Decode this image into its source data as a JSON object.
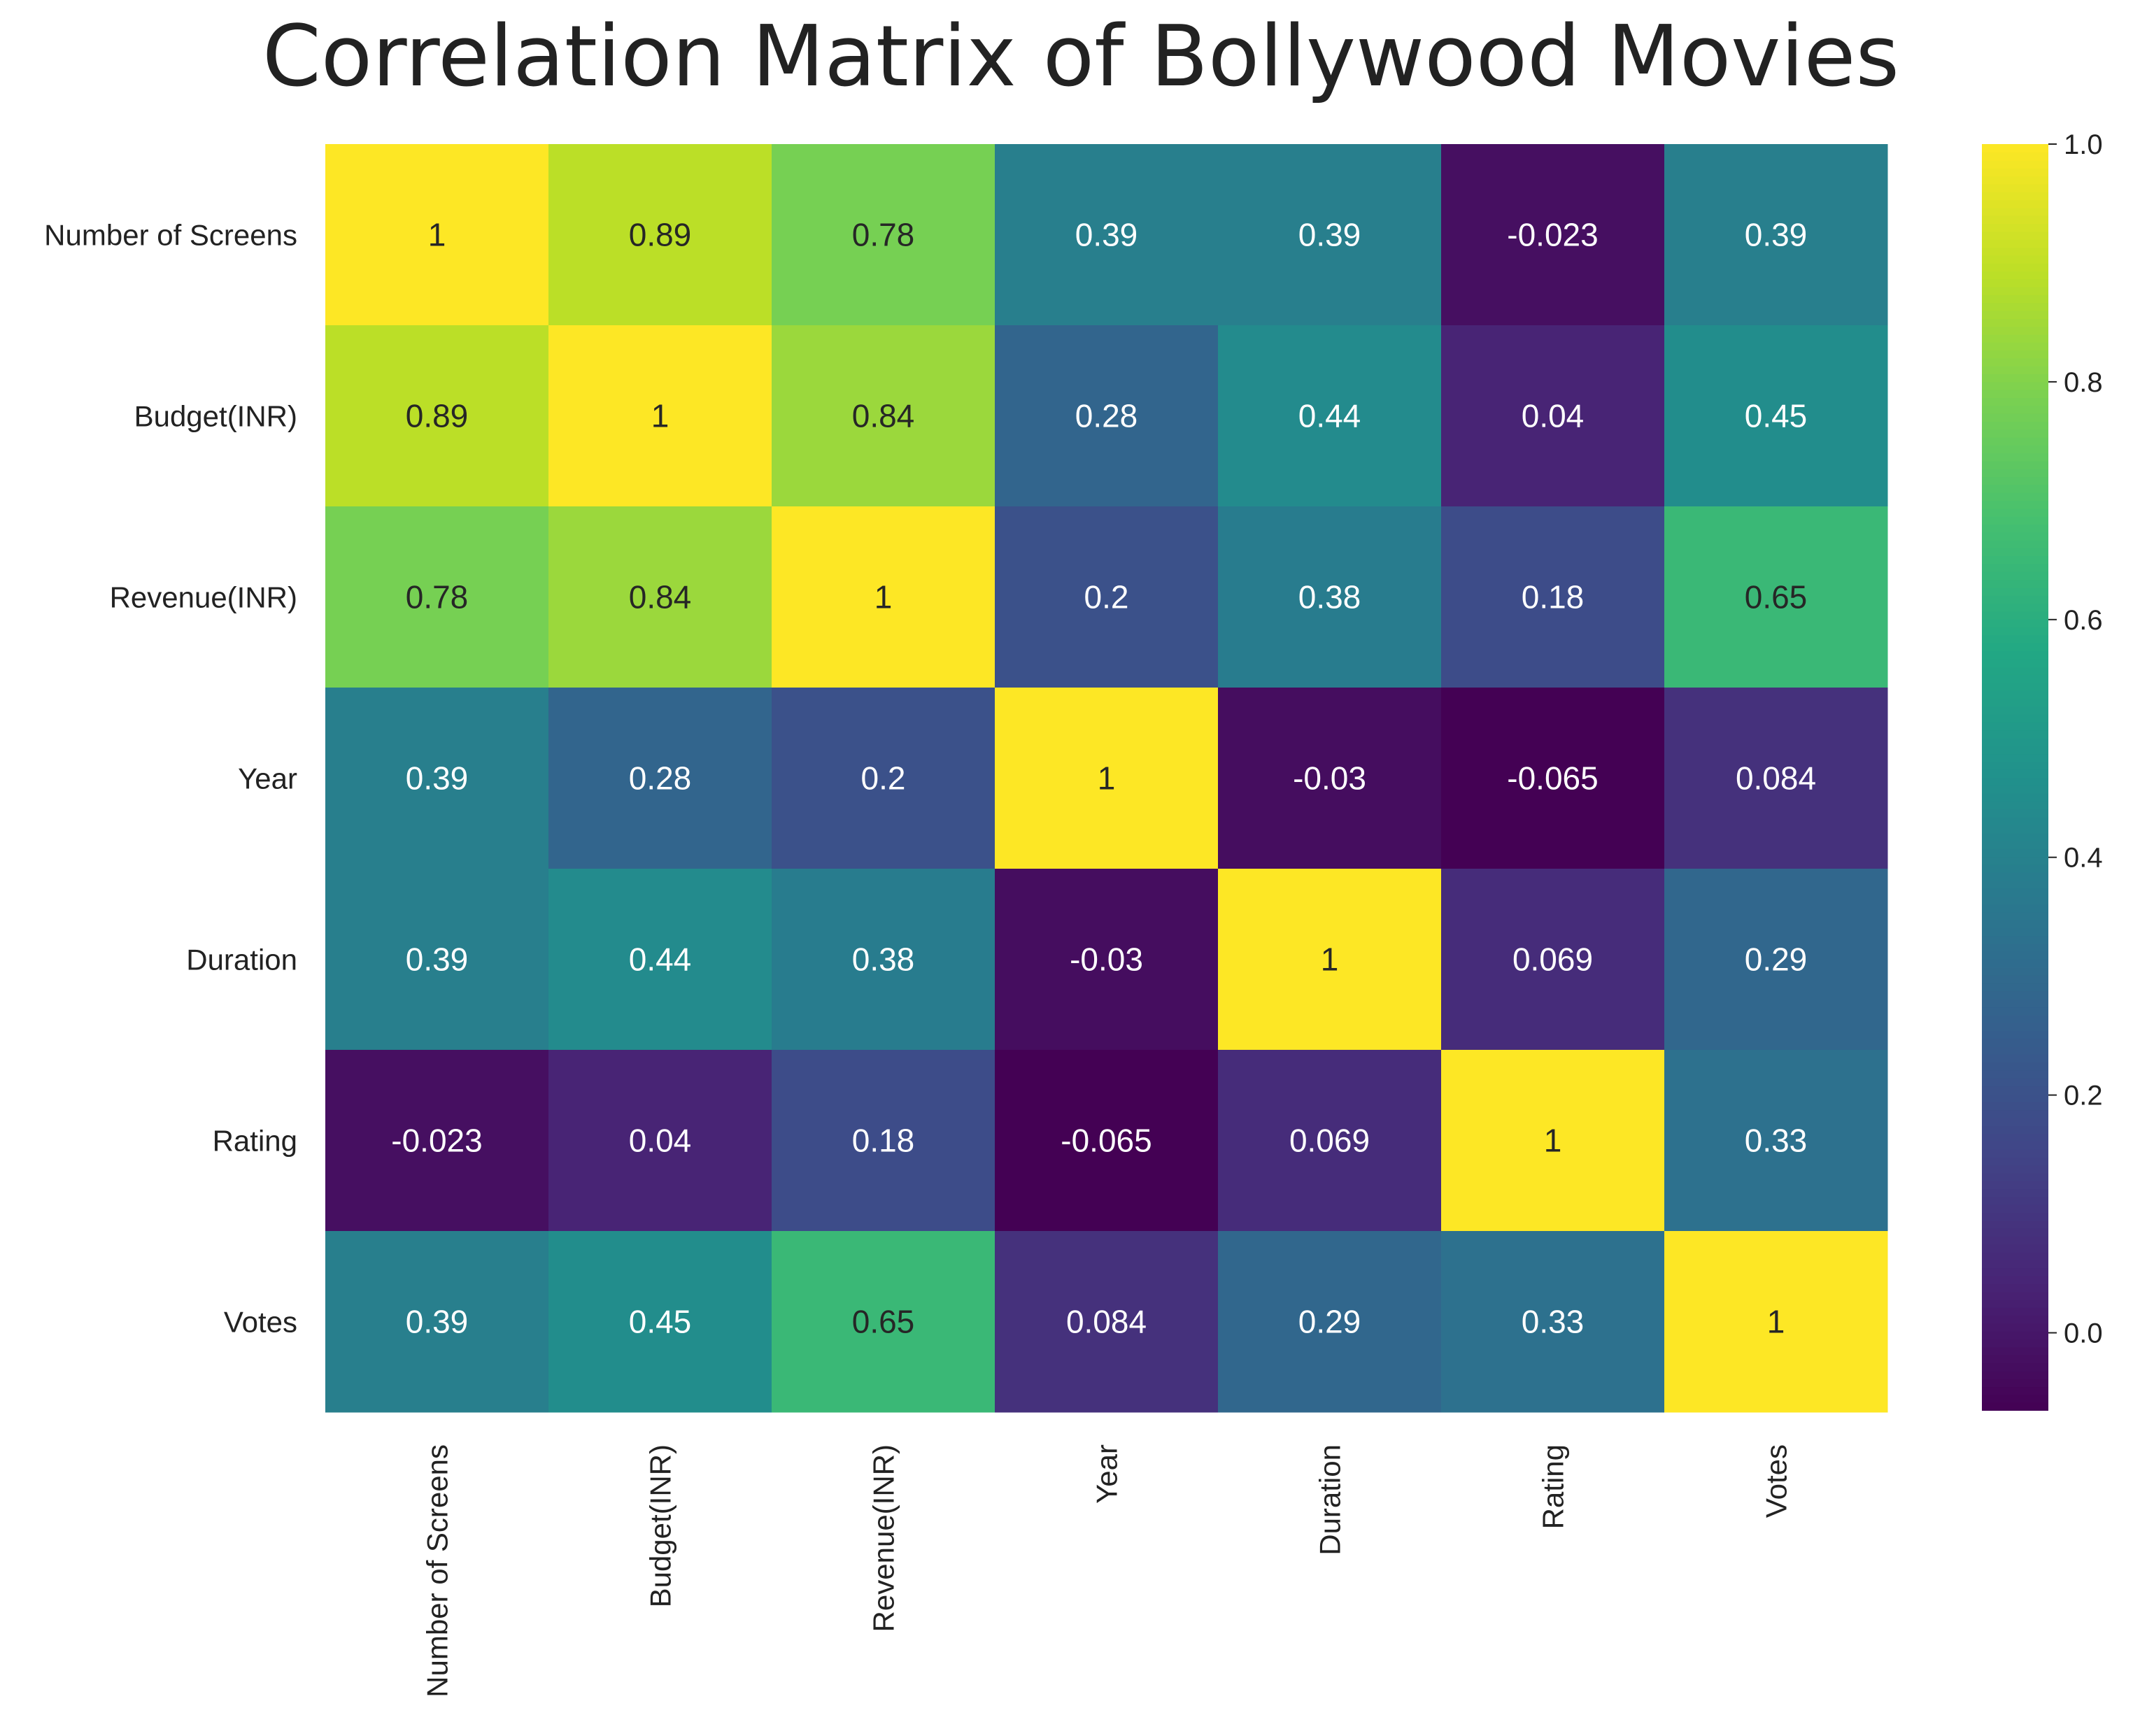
{
  "chart_data": {
    "type": "heatmap",
    "title": "Correlation Matrix of Bollywood Movies",
    "xlabel": "",
    "ylabel": "",
    "rows": [
      "Number of Screens",
      "Budget(INR)",
      "Revenue(INR)",
      "Year",
      "Duration",
      "Rating",
      "Votes"
    ],
    "columns": [
      "Number of Screens",
      "Budget(INR)",
      "Revenue(INR)",
      "Year",
      "Duration",
      "Rating",
      "Votes"
    ],
    "values": [
      [
        1,
        0.89,
        0.78,
        0.39,
        0.39,
        -0.023,
        0.39
      ],
      [
        0.89,
        1,
        0.84,
        0.28,
        0.44,
        0.04,
        0.45
      ],
      [
        0.78,
        0.84,
        1,
        0.2,
        0.38,
        0.18,
        0.65
      ],
      [
        0.39,
        0.28,
        0.2,
        1,
        -0.03,
        -0.065,
        0.084
      ],
      [
        0.39,
        0.44,
        0.38,
        -0.03,
        1,
        0.069,
        0.29
      ],
      [
        -0.023,
        0.04,
        0.18,
        -0.065,
        0.069,
        1,
        0.33
      ],
      [
        0.39,
        0.45,
        0.65,
        0.084,
        0.29,
        0.33,
        1
      ]
    ],
    "annotations": [
      [
        "1",
        "0.89",
        "0.78",
        "0.39",
        "0.39",
        "-0.023",
        "0.39"
      ],
      [
        "0.89",
        "1",
        "0.84",
        "0.28",
        "0.44",
        "0.04",
        "0.45"
      ],
      [
        "0.78",
        "0.84",
        "1",
        "0.2",
        "0.38",
        "0.18",
        "0.65"
      ],
      [
        "0.39",
        "0.28",
        "0.2",
        "1",
        "-0.03",
        "-0.065",
        "0.084"
      ],
      [
        "0.39",
        "0.44",
        "0.38",
        "-0.03",
        "1",
        "0.069",
        "0.29"
      ],
      [
        "-0.023",
        "0.04",
        "0.18",
        "-0.065",
        "0.069",
        "1",
        "0.33"
      ],
      [
        "0.39",
        "0.45",
        "0.65",
        "0.084",
        "0.29",
        "0.33",
        "1"
      ]
    ],
    "colormap": "viridis",
    "vmin": -0.065,
    "vmax": 1,
    "colorbar": {
      "ticks": [
        0.0,
        0.2,
        0.4,
        0.6,
        0.8,
        1.0
      ],
      "tick_labels": [
        "0.0",
        "0.2",
        "0.4",
        "0.6",
        "0.8",
        "1.0"
      ],
      "placement": "right"
    },
    "x_tick_rotation": "vertical",
    "annotation_colors": {
      "light": "#ffffff",
      "dark": "#262626"
    }
  }
}
